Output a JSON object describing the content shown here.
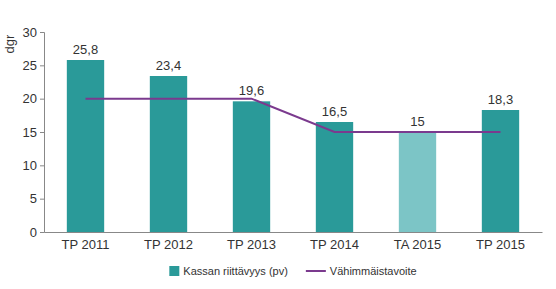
{
  "chart_data": {
    "type": "bar",
    "ylabel": "dgr",
    "categories": [
      "TP 2011",
      "TP 2012",
      "TP 2013",
      "TP 2014",
      "TA 2015",
      "TP 2015"
    ],
    "series": [
      {
        "name": "Kassan riittävyys (pv)",
        "type": "bar",
        "colors": [
          "#2a9a99",
          "#2a9a99",
          "#2a9a99",
          "#2a9a99",
          "#7cc5c6",
          "#2a9a99"
        ],
        "values": [
          25.8,
          23.4,
          19.6,
          16.5,
          15,
          18.3
        ],
        "value_labels": [
          "25,8",
          "23,4",
          "19,6",
          "16,5",
          "15",
          "18,3"
        ]
      },
      {
        "name": "Vähimmäistavoite",
        "type": "line",
        "color": "#7b3a8e",
        "values": [
          20,
          20,
          20,
          15,
          15,
          15
        ]
      }
    ],
    "data_labels": true,
    "legend": "bottom",
    "ylim": [
      0,
      30
    ],
    "yticks": [
      0,
      5,
      10,
      15,
      20,
      25,
      30
    ]
  }
}
